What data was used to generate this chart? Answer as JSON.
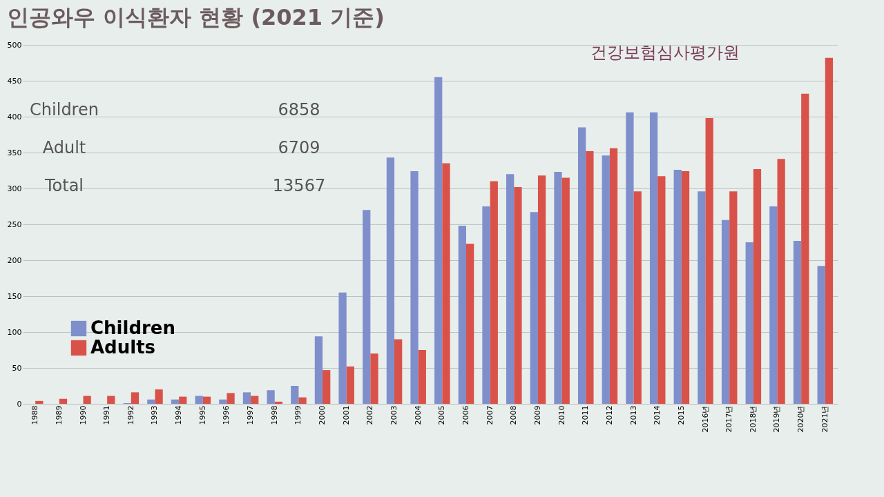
{
  "chart_data": {
    "type": "bar",
    "title": "인공와우 이식환자 현황 (2021 기준)",
    "categories": [
      "1988",
      "1989",
      "1990",
      "1991",
      "1992",
      "1993",
      "1994",
      "1995",
      "1996",
      "1997",
      "1998",
      "1999",
      "2000",
      "2001",
      "2002",
      "2003",
      "2004",
      "2005",
      "2006",
      "2007",
      "2008",
      "2009",
      "2010",
      "2011",
      "2012",
      "2013",
      "2014",
      "2015",
      "2016년",
      "2017년",
      "2018년",
      "2019년",
      "2020년",
      "2021년"
    ],
    "series": [
      {
        "name": "Children",
        "color": "#7f8fcc",
        "values": [
          0,
          0,
          0,
          0,
          1,
          6,
          6,
          11,
          6,
          16,
          19,
          25,
          94,
          155,
          270,
          343,
          324,
          455,
          248,
          275,
          320,
          267,
          323,
          385,
          346,
          406,
          406,
          326,
          296,
          256,
          225,
          275,
          227,
          192
        ]
      },
      {
        "name": "Adults",
        "color": "#d9524a",
        "values": [
          4,
          7,
          11,
          11,
          16,
          20,
          10,
          10,
          15,
          11,
          3,
          9,
          47,
          52,
          70,
          90,
          75,
          335,
          223,
          310,
          302,
          318,
          315,
          352,
          356,
          296,
          317,
          324,
          398,
          296,
          327,
          341,
          432,
          482
        ]
      }
    ],
    "ylim": [
      0,
      500
    ],
    "yticks": [
      0,
      50,
      100,
      150,
      200,
      250,
      300,
      350,
      400,
      450,
      500
    ],
    "grid": "y",
    "legend": "bottom left",
    "annotations": [
      "Children",
      "6858",
      "Adult",
      "6709",
      "Total",
      "13567",
      "건강보험심사평가원"
    ]
  }
}
